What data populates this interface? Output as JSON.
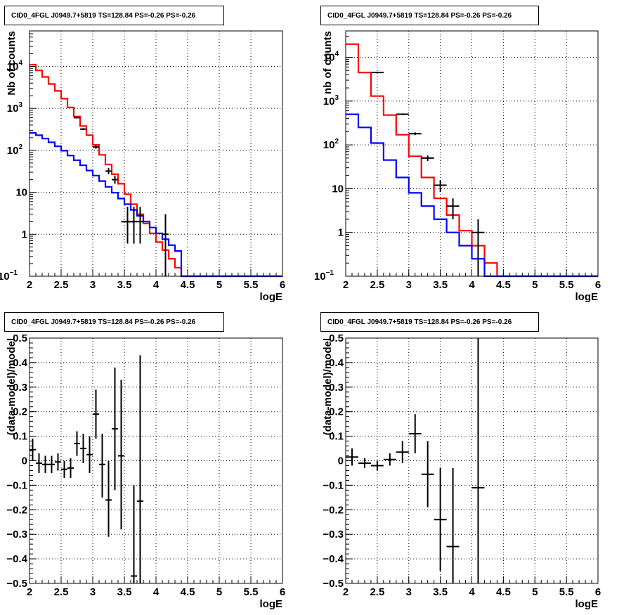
{
  "chart_data": [
    {
      "type": "histogram",
      "title": "CID0_4FGL J0949.7+5819 TS=128.84 PS=-0.26 PS=-0.26",
      "xlabel": "logE",
      "ylabel": "Nb of counts",
      "log_y": true,
      "xlim": [
        2,
        6
      ],
      "ylim": [
        0.1,
        70000
      ],
      "x_ticks": [
        "2",
        "2.5",
        "3",
        "3.5",
        "4",
        "4.5",
        "5",
        "5.5",
        "6"
      ],
      "y_ticks": [
        {
          "v": 0.1,
          "label": "10",
          "sup": "−1"
        },
        {
          "v": 1,
          "label": "1",
          "sup": ""
        },
        {
          "v": 10,
          "label": "10",
          "sup": ""
        },
        {
          "v": 100,
          "label": "10",
          "sup": "2"
        },
        {
          "v": 1000,
          "label": "10",
          "sup": "3"
        },
        {
          "v": 10000,
          "label": "10",
          "sup": "4"
        }
      ],
      "grid": true,
      "bin_edges": [
        2.0,
        2.1,
        2.2,
        2.3,
        2.4,
        2.5,
        2.6,
        2.7,
        2.8,
        2.9,
        3.0,
        3.1,
        3.2,
        3.3,
        3.4,
        3.5,
        3.6,
        3.7,
        3.8,
        3.9,
        4.0,
        4.1,
        4.2,
        4.3,
        4.4,
        4.5,
        4.6,
        6.0
      ],
      "series": [
        {
          "color": "#ff0000",
          "values": [
            11000,
            8000,
            5600,
            3800,
            2600,
            1700,
            1050,
            640,
            380,
            230,
            135,
            78,
            46,
            27,
            16,
            9,
            5.2,
            3.0,
            1.8,
            1.05,
            0.65,
            0.42,
            0.26,
            0.16,
            0.1,
            0.1,
            0.1
          ]
        },
        {
          "color": "#0000ff",
          "values": [
            260,
            230,
            190,
            155,
            125,
            98,
            75,
            58,
            44,
            33,
            25,
            18.5,
            13.5,
            9.8,
            7.1,
            5.2,
            3.8,
            2.75,
            2.0,
            1.45,
            1.05,
            0.76,
            0.55,
            0.4,
            0.1,
            0.1,
            0.1
          ]
        }
      ],
      "data_points": [
        {
          "x": 2.75,
          "y": 600,
          "xerr": 0.05,
          "ylo": 580,
          "yhi": 620
        },
        {
          "x": 2.85,
          "y": 320,
          "xerr": 0.05,
          "ylo": 302,
          "yhi": 338
        },
        {
          "x": 3.05,
          "y": 120,
          "xerr": 0.05,
          "ylo": 109,
          "yhi": 131
        },
        {
          "x": 3.25,
          "y": 32,
          "xerr": 0.05,
          "ylo": 27,
          "yhi": 38
        },
        {
          "x": 3.35,
          "y": 20,
          "xerr": 0.05,
          "ylo": 16,
          "yhi": 25
        },
        {
          "x": 3.55,
          "y": 2,
          "xerr": 0.1,
          "ylo": 0.6,
          "yhi": 4.5
        },
        {
          "x": 3.65,
          "y": 2,
          "xerr": 0.05,
          "ylo": 0.6,
          "yhi": 4.5
        },
        {
          "x": 3.75,
          "y": 2,
          "xerr": 0.05,
          "ylo": 0.6,
          "yhi": 4.5
        },
        {
          "x": 4.15,
          "y": 1,
          "xerr": 0.05,
          "ylo": 0.1,
          "yhi": 3
        }
      ]
    },
    {
      "type": "histogram",
      "title": "CID0_4FGL J0949.7+5819 TS=128.84 PS=-0.26 PS=-0.26",
      "xlabel": "logE",
      "ylabel": "nb of counts",
      "log_y": true,
      "xlim": [
        2,
        6
      ],
      "ylim": [
        0.1,
        40000
      ],
      "x_ticks": [
        "2",
        "2.5",
        "3",
        "3.5",
        "4",
        "4.5",
        "5",
        "5.5",
        "6"
      ],
      "y_ticks": [
        {
          "v": 0.1,
          "label": "10",
          "sup": "−1"
        },
        {
          "v": 1,
          "label": "1",
          "sup": ""
        },
        {
          "v": 10,
          "label": "10",
          "sup": ""
        },
        {
          "v": 100,
          "label": "10",
          "sup": "2"
        },
        {
          "v": 1000,
          "label": "10",
          "sup": "3"
        },
        {
          "v": 10000,
          "label": "10",
          "sup": "4"
        }
      ],
      "grid": true,
      "bin_edges": [
        2.0,
        2.2,
        2.4,
        2.6,
        2.8,
        3.0,
        3.2,
        3.4,
        3.6,
        3.8,
        4.0,
        4.2,
        4.4,
        4.6,
        6.0
      ],
      "series": [
        {
          "color": "#ff0000",
          "values": [
            20000,
            4500,
            1300,
            480,
            170,
            55,
            18,
            6,
            2.5,
            1.1,
            0.5,
            0.2,
            0.1,
            0.1
          ]
        },
        {
          "color": "#0000ff",
          "values": [
            500,
            250,
            110,
            45,
            18,
            8,
            4,
            2,
            1,
            0.5,
            0.25,
            0.1,
            0.1,
            0.1
          ]
        }
      ],
      "data_points": [
        {
          "x": 2.5,
          "y": 4500,
          "xerr": 0.1,
          "ylo": 4370,
          "yhi": 4630
        },
        {
          "x": 2.9,
          "y": 500,
          "xerr": 0.1,
          "ylo": 478,
          "yhi": 522
        },
        {
          "x": 3.1,
          "y": 180,
          "xerr": 0.1,
          "ylo": 167,
          "yhi": 193
        },
        {
          "x": 3.3,
          "y": 50,
          "xerr": 0.1,
          "ylo": 43,
          "yhi": 57
        },
        {
          "x": 3.5,
          "y": 12,
          "xerr": 0.1,
          "ylo": 8.5,
          "yhi": 15.5
        },
        {
          "x": 3.7,
          "y": 4,
          "xerr": 0.1,
          "ylo": 2,
          "yhi": 6
        },
        {
          "x": 4.1,
          "y": 1,
          "xerr": 0.1,
          "ylo": 0.1,
          "yhi": 2
        }
      ]
    },
    {
      "type": "scatter",
      "title": "CID0_4FGL J0949.7+5819 TS=128.84 PS=-0.26 PS=-0.26",
      "xlabel": "logE",
      "ylabel": "(data-model)/model",
      "log_y": false,
      "xlim": [
        2,
        6
      ],
      "ylim": [
        -0.5,
        0.5
      ],
      "x_ticks": [
        "2",
        "2.5",
        "3",
        "3.5",
        "4",
        "4.5",
        "5",
        "5.5",
        "6"
      ],
      "y_ticks": [
        {
          "v": -0.5,
          "label": "−0.5",
          "sup": ""
        },
        {
          "v": -0.4,
          "label": "−0.4",
          "sup": ""
        },
        {
          "v": -0.3,
          "label": "−0.3",
          "sup": ""
        },
        {
          "v": -0.2,
          "label": "−0.2",
          "sup": ""
        },
        {
          "v": -0.1,
          "label": "−0.1",
          "sup": ""
        },
        {
          "v": 0,
          "label": "0",
          "sup": ""
        },
        {
          "v": 0.1,
          "label": "0.1",
          "sup": ""
        },
        {
          "v": 0.2,
          "label": "0.2",
          "sup": ""
        },
        {
          "v": 0.3,
          "label": "0.3",
          "sup": ""
        },
        {
          "v": 0.4,
          "label": "0.4",
          "sup": ""
        },
        {
          "v": 0.5,
          "label": "0.5",
          "sup": ""
        }
      ],
      "grid": true,
      "data_points": [
        {
          "x": 2.05,
          "y": 0.045,
          "xerr": 0.05,
          "ylo": 0.0,
          "yhi": 0.09
        },
        {
          "x": 2.15,
          "y": -0.01,
          "xerr": 0.05,
          "ylo": -0.05,
          "yhi": 0.03
        },
        {
          "x": 2.25,
          "y": -0.015,
          "xerr": 0.05,
          "ylo": -0.05,
          "yhi": 0.02
        },
        {
          "x": 2.35,
          "y": -0.015,
          "xerr": 0.05,
          "ylo": -0.05,
          "yhi": 0.02
        },
        {
          "x": 2.45,
          "y": -0.005,
          "xerr": 0.05,
          "ylo": -0.04,
          "yhi": 0.03
        },
        {
          "x": 2.55,
          "y": -0.035,
          "xerr": 0.05,
          "ylo": -0.07,
          "yhi": 0.0
        },
        {
          "x": 2.65,
          "y": -0.03,
          "xerr": 0.05,
          "ylo": -0.07,
          "yhi": 0.01
        },
        {
          "x": 2.75,
          "y": 0.07,
          "xerr": 0.05,
          "ylo": 0.02,
          "yhi": 0.12
        },
        {
          "x": 2.85,
          "y": 0.05,
          "xerr": 0.05,
          "ylo": -0.01,
          "yhi": 0.11
        },
        {
          "x": 2.95,
          "y": 0.025,
          "xerr": 0.05,
          "ylo": -0.05,
          "yhi": 0.1
        },
        {
          "x": 3.05,
          "y": 0.19,
          "xerr": 0.05,
          "ylo": 0.09,
          "yhi": 0.29
        },
        {
          "x": 3.15,
          "y": -0.015,
          "xerr": 0.05,
          "ylo": -0.15,
          "yhi": 0.11
        },
        {
          "x": 3.25,
          "y": -0.16,
          "xerr": 0.05,
          "ylo": -0.31,
          "yhi": 0.0
        },
        {
          "x": 3.35,
          "y": 0.13,
          "xerr": 0.05,
          "ylo": -0.12,
          "yhi": 0.38
        },
        {
          "x": 3.45,
          "y": 0.02,
          "xerr": 0.05,
          "ylo": -0.28,
          "yhi": 0.33
        },
        {
          "x": 3.65,
          "y": -0.47,
          "xerr": 0.05,
          "ylo": -0.5,
          "yhi": -0.1
        },
        {
          "x": 3.75,
          "y": -0.165,
          "xerr": 0.05,
          "ylo": -0.5,
          "yhi": 0.43
        }
      ]
    },
    {
      "type": "scatter",
      "title": "CID0_4FGL J0949.7+5819 TS=128.84 PS=-0.26 PS=-0.26",
      "xlabel": "logE",
      "ylabel": "(data-model)/model",
      "log_y": false,
      "xlim": [
        2,
        6
      ],
      "ylim": [
        -0.5,
        0.5
      ],
      "x_ticks": [
        "2",
        "2.5",
        "3",
        "3.5",
        "4",
        "4.5",
        "5",
        "5.5",
        "6"
      ],
      "y_ticks": [
        {
          "v": -0.5,
          "label": "−0.5",
          "sup": ""
        },
        {
          "v": -0.4,
          "label": "−0.4",
          "sup": ""
        },
        {
          "v": -0.3,
          "label": "−0.3",
          "sup": ""
        },
        {
          "v": -0.2,
          "label": "−0.2",
          "sup": ""
        },
        {
          "v": -0.1,
          "label": "−0.1",
          "sup": ""
        },
        {
          "v": 0,
          "label": "0",
          "sup": ""
        },
        {
          "v": 0.1,
          "label": "0.1",
          "sup": ""
        },
        {
          "v": 0.2,
          "label": "0.2",
          "sup": ""
        },
        {
          "v": 0.3,
          "label": "0.3",
          "sup": ""
        },
        {
          "v": 0.4,
          "label": "0.4",
          "sup": ""
        },
        {
          "v": 0.5,
          "label": "0.5",
          "sup": ""
        }
      ],
      "grid": true,
      "data_points": [
        {
          "x": 2.1,
          "y": 0.015,
          "xerr": 0.1,
          "ylo": -0.02,
          "yhi": 0.05
        },
        {
          "x": 2.3,
          "y": -0.01,
          "xerr": 0.1,
          "ylo": -0.03,
          "yhi": 0.01
        },
        {
          "x": 2.5,
          "y": -0.02,
          "xerr": 0.1,
          "ylo": -0.04,
          "yhi": 0.0
        },
        {
          "x": 2.7,
          "y": 0.005,
          "xerr": 0.1,
          "ylo": -0.02,
          "yhi": 0.03
        },
        {
          "x": 2.9,
          "y": 0.035,
          "xerr": 0.1,
          "ylo": -0.01,
          "yhi": 0.08
        },
        {
          "x": 3.1,
          "y": 0.11,
          "xerr": 0.1,
          "ylo": 0.03,
          "yhi": 0.19
        },
        {
          "x": 3.3,
          "y": -0.055,
          "xerr": 0.1,
          "ylo": -0.19,
          "yhi": 0.08
        },
        {
          "x": 3.5,
          "y": -0.24,
          "xerr": 0.1,
          "ylo": -0.45,
          "yhi": -0.03
        },
        {
          "x": 3.7,
          "y": -0.35,
          "xerr": 0.1,
          "ylo": -0.5,
          "yhi": -0.03
        },
        {
          "x": 4.1,
          "y": -0.11,
          "xerr": 0.1,
          "ylo": -0.5,
          "yhi": 0.5
        }
      ]
    }
  ]
}
